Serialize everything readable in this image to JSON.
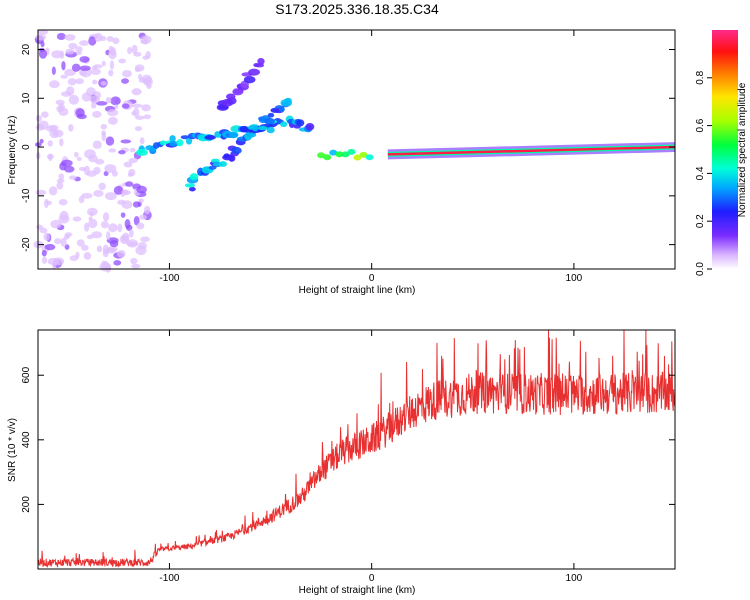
{
  "title": "S173.2025.336.18.35.C34",
  "chart_data": [
    {
      "type": "heatmap",
      "name": "spectrogram",
      "xlabel": "Height of straight line (km)",
      "ylabel": "Frequency (Hz)",
      "xlim": [
        -165,
        150
      ],
      "ylim": [
        -25,
        24
      ],
      "xticks": [
        -100,
        0,
        100
      ],
      "yticks": [
        -20,
        -10,
        0,
        10,
        20
      ],
      "colorbar": {
        "label": "Normalized spectral amplitude",
        "range": [
          0,
          1
        ],
        "ticks": [
          "0.0",
          "0.2",
          "0.4",
          "0.6",
          "0.8"
        ],
        "tick_values": [
          0.0,
          0.2,
          0.4,
          0.6,
          0.8
        ]
      },
      "features": [
        {
          "kind": "noise-cloud",
          "x_range": [
            -165,
            -110
          ],
          "freq_range": [
            -25,
            24
          ],
          "amplitude": 0.05
        },
        {
          "kind": "dispersive-streak",
          "points": [
            [
              -115,
              -1
            ],
            [
              -100,
              1
            ],
            [
              -85,
              2
            ],
            [
              -70,
              3
            ],
            [
              -55,
              4
            ],
            [
              -40,
              5
            ],
            [
              -30,
              4
            ]
          ],
          "amplitude": 0.3
        },
        {
          "kind": "dispersive-streak",
          "points": [
            [
              -90,
              -8
            ],
            [
              -80,
              -4
            ],
            [
              -70,
              -2
            ],
            [
              -60,
              3
            ],
            [
              -50,
              6
            ],
            [
              -40,
              10
            ]
          ],
          "amplitude": 0.3
        },
        {
          "kind": "dispersive-streak",
          "points": [
            [
              -75,
              8
            ],
            [
              -65,
              12
            ],
            [
              -55,
              18
            ]
          ],
          "amplitude": 0.15
        },
        {
          "kind": "blobs",
          "x_range": [
            -25,
            0
          ],
          "freq": -1.5,
          "amplitude": 0.6
        },
        {
          "kind": "carrier-line",
          "x_range": [
            8,
            150
          ],
          "freq_start": -1.5,
          "freq_end": 0,
          "amplitude": 0.95
        }
      ]
    },
    {
      "type": "line",
      "name": "snr",
      "xlabel": "Height of straight line (km)",
      "ylabel": "SNR (10 * v/v)",
      "xlim": [
        -165,
        150
      ],
      "ylim": [
        0,
        740
      ],
      "xticks": [
        -100,
        0,
        100
      ],
      "yticks": [
        200,
        400,
        600
      ],
      "color": "#e83030",
      "envelope": [
        {
          "x": -165,
          "y": 20
        },
        {
          "x": -110,
          "y": 20
        },
        {
          "x": -105,
          "y": 60
        },
        {
          "x": -90,
          "y": 70
        },
        {
          "x": -70,
          "y": 100
        },
        {
          "x": -50,
          "y": 160
        },
        {
          "x": -35,
          "y": 220
        },
        {
          "x": -25,
          "y": 300
        },
        {
          "x": -15,
          "y": 360
        },
        {
          "x": 0,
          "y": 400
        },
        {
          "x": 10,
          "y": 440
        },
        {
          "x": 20,
          "y": 490
        },
        {
          "x": 30,
          "y": 520
        },
        {
          "x": 50,
          "y": 545
        },
        {
          "x": 100,
          "y": 540
        },
        {
          "x": 150,
          "y": 545
        }
      ]
    }
  ]
}
